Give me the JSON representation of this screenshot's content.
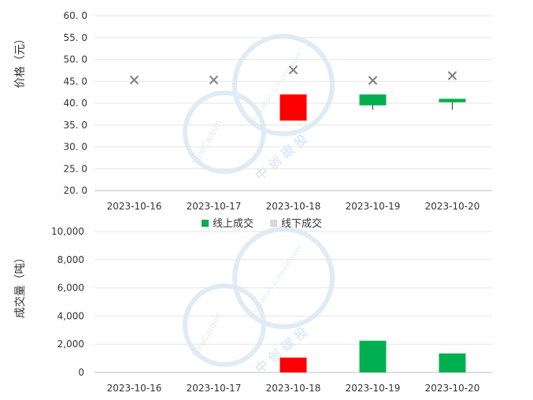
{
  "colors": {
    "up": "#00b050",
    "down": "#ff0000",
    "offline": "#d9d9d9",
    "marker": "#7f7f7f",
    "grid": "#e6e6e6",
    "axis": "#bfbfbf",
    "watermark": "#c5dcee"
  },
  "watermark": {
    "brand_cn": "中 创 碳 投",
    "brand_en_1": "SinoCarbon",
    "brand_en_2": "Innovation & Investment"
  },
  "legend": {
    "online": "线上成交",
    "offline": "线下成交"
  },
  "chart_data": [
    {
      "type": "candlestick",
      "ylabel": "价格（元）",
      "ylim": [
        20,
        60
      ],
      "yticks": [
        "20. 0",
        "25. 0",
        "30. 0",
        "35. 0",
        "40. 0",
        "45. 0",
        "50. 0",
        "55. 0",
        "60. 0"
      ],
      "categories": [
        "2023-10-16",
        "2023-10-17",
        "2023-10-18",
        "2023-10-19",
        "2023-10-20"
      ],
      "candles": [
        null,
        null,
        {
          "open": 36.0,
          "close": 42.0,
          "high": 42.0,
          "low": 36.0,
          "color": "down"
        },
        {
          "open": 39.5,
          "close": 42.0,
          "high": 42.0,
          "low": 38.5,
          "color": "up"
        },
        {
          "open": 40.2,
          "close": 41.0,
          "high": 41.0,
          "low": 38.5,
          "color": "up"
        }
      ],
      "offline_price": [
        45.3,
        45.3,
        47.6,
        45.2,
        46.3
      ]
    },
    {
      "type": "bar",
      "ylabel": "成交量（吨）",
      "ylim": [
        0,
        10000
      ],
      "yticks": [
        "0",
        "2,000",
        "4,000",
        "6,000",
        "8,000",
        "10,000"
      ],
      "categories": [
        "2023-10-16",
        "2023-10-17",
        "2023-10-18",
        "2023-10-19",
        "2023-10-20"
      ],
      "values": [
        0,
        0,
        1050,
        2250,
        1350
      ],
      "colors": [
        "up",
        "up",
        "down",
        "up",
        "up"
      ]
    }
  ]
}
